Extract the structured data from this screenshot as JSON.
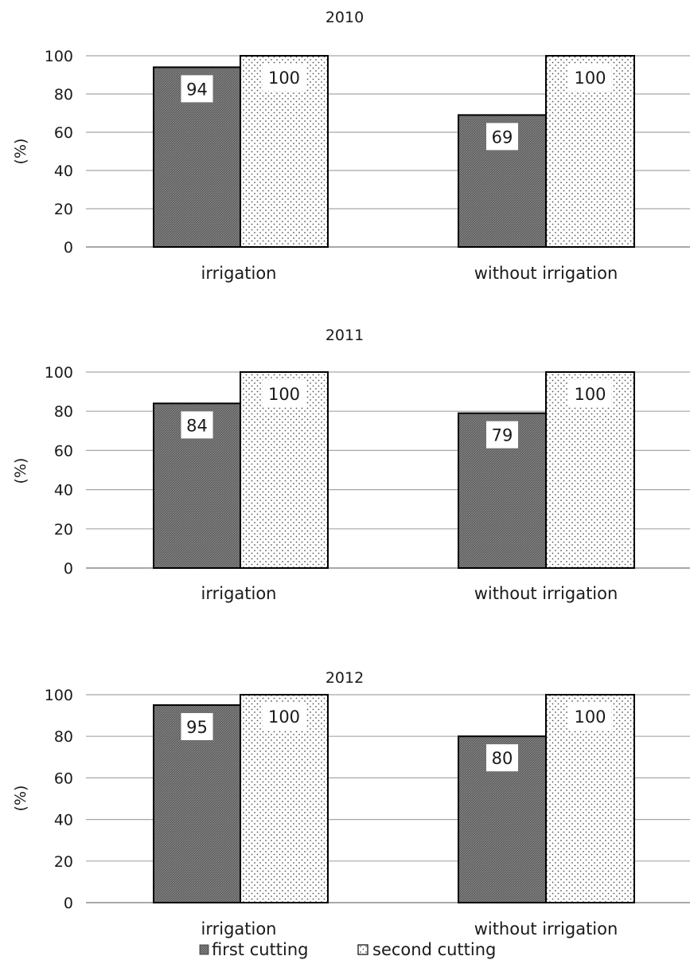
{
  "colors": {
    "first": "#6e6e6e",
    "second_bg": "#ffffff",
    "second_dot": "#555555",
    "grid": "#a6a6a6",
    "axis": "#8c8c8c",
    "outline": "#000000"
  },
  "legend": {
    "placement": "bottom-center",
    "first_label": "first cutting",
    "second_label": "second cutting"
  },
  "chart_data": [
    {
      "type": "bar",
      "title": "2010",
      "ylabel": "(%)",
      "xlabel": "",
      "categories": [
        "irrigation",
        "without irrigation"
      ],
      "ylim": [
        0,
        100
      ],
      "yticks": [
        "0",
        "20",
        "40",
        "60",
        "80",
        "100"
      ],
      "grid": true,
      "series": [
        {
          "name": "first cutting",
          "values": [
            94,
            69
          ],
          "labels": [
            "94",
            "69"
          ]
        },
        {
          "name": "second cutting",
          "values": [
            100,
            100
          ],
          "labels": [
            "100",
            "100"
          ]
        }
      ]
    },
    {
      "type": "bar",
      "title": "2011",
      "ylabel": "(%)",
      "xlabel": "",
      "categories": [
        "irrigation",
        "without irrigation"
      ],
      "ylim": [
        0,
        100
      ],
      "yticks": [
        "0",
        "20",
        "40",
        "60",
        "80",
        "100"
      ],
      "grid": true,
      "series": [
        {
          "name": "first cutting",
          "values": [
            84,
            79
          ],
          "labels": [
            "84",
            "79"
          ]
        },
        {
          "name": "second cutting",
          "values": [
            100,
            100
          ],
          "labels": [
            "100",
            "100"
          ]
        }
      ]
    },
    {
      "type": "bar",
      "title": "2012",
      "ylabel": "(%)",
      "xlabel": "",
      "categories": [
        "irrigation",
        "without irrigation"
      ],
      "ylim": [
        0,
        100
      ],
      "yticks": [
        "0",
        "20",
        "40",
        "60",
        "80",
        "100"
      ],
      "grid": true,
      "series": [
        {
          "name": "first cutting",
          "values": [
            95,
            80
          ],
          "labels": [
            "95",
            "80"
          ]
        },
        {
          "name": "second cutting",
          "values": [
            100,
            100
          ],
          "labels": [
            "100",
            "100"
          ]
        }
      ]
    }
  ]
}
